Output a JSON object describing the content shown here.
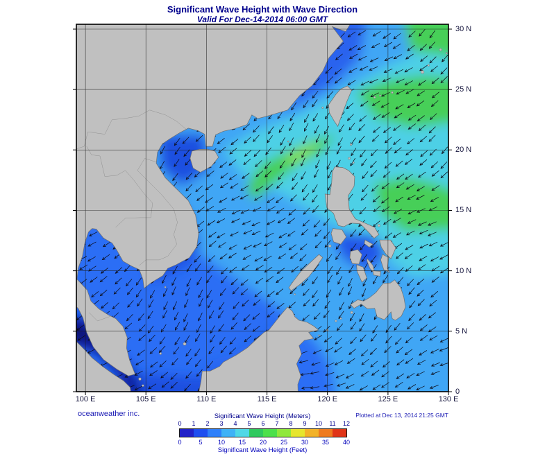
{
  "header": {
    "title": "Significant Wave Height with Wave Direction",
    "subtitle": "Valid For Dec-14-2014 06:00 GMT"
  },
  "map": {
    "x_axis": {
      "ticks": [
        "100 E",
        "105 E",
        "110 E",
        "115 E",
        "120 E",
        "125 E",
        "130 E"
      ]
    },
    "y_axis": {
      "ticks": [
        "30 N",
        "25 N",
        "20 N",
        "15 N",
        "10 N",
        "5 N",
        "0"
      ]
    }
  },
  "footer": {
    "credit": "oceanweather inc.",
    "plotted": "Plotted at Dec 13, 2014 21:25 GMT"
  },
  "legend": {
    "meters_label": "Significant Wave Height (Meters)",
    "feet_label": "Significant Wave Height (Feet)",
    "meters_ticks": [
      "0",
      "1",
      "2",
      "3",
      "4",
      "5",
      "6",
      "7",
      "8",
      "9",
      "10",
      "11",
      "12"
    ],
    "feet_ticks": [
      "0",
      "5",
      "10",
      "15",
      "20",
      "25",
      "30",
      "35",
      "40"
    ],
    "colors": [
      "#2121c8",
      "#1e4ef0",
      "#2e80fa",
      "#3fb2f6",
      "#4fd8e6",
      "#2fc95e",
      "#4ce04a",
      "#8fe83c",
      "#e6e62e",
      "#f2b228",
      "#ee7a1e",
      "#e03418"
    ]
  },
  "colors": {
    "title_navy": "#00008c",
    "credit_blue": "#1a1ab4",
    "land_gray": "#c0c0c0",
    "ocean_base": "#2b6ef5"
  }
}
